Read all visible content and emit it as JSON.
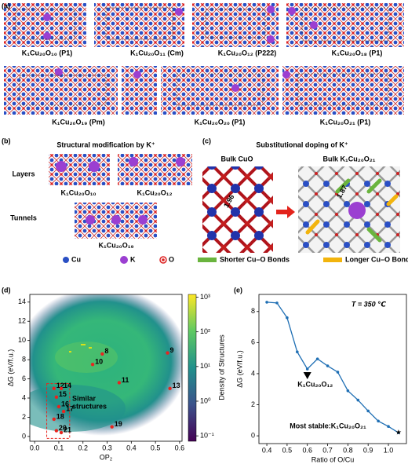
{
  "figure": {
    "panel_labels": [
      "(a)",
      "(b)",
      "(c)",
      "(d)",
      "(e)"
    ],
    "a_labels": [
      "K₁Cu₂₀O₁₀ (P1)",
      "K₁Cu₂₀O₁₁ (Cm)",
      "K₁Cu₂₀O₁₂ (P222)",
      "K₁Cu₂₀O₁₈ (P1)",
      "K₁Cu₂₀O₁₉ (Pm)",
      "K₁Cu₂₀O₂₀ (P1)",
      "K₁Cu₂₀O₂₁ (P1)"
    ],
    "b": {
      "title": "Structural modification by K⁺",
      "layers": "Layers",
      "tunnels": "Tunnels",
      "labels": [
        "K₁Cu₂₀O₁₀",
        "K₁Cu₂₀O₁₂",
        "K₁Cu₂₀O₁₉"
      ]
    },
    "c": {
      "title": "Substitutional doping of K⁺",
      "left": "Bulk CuO",
      "right": "Bulk K₁Cu₂₀O₂₁",
      "bond_left": "1.96",
      "bond_right": "1.87"
    },
    "legend": {
      "atoms": [
        "Cu",
        "K",
        "O"
      ],
      "bonds": [
        "Shorter Cu–O Bonds",
        "Longer Cu–O Bonds"
      ]
    }
  },
  "chart_data": [
    {
      "type": "scatter",
      "xlabel": "OP₂",
      "ylabel": "ΔG (eV/f.u.)",
      "xlim": [
        -0.02,
        0.61
      ],
      "ylim": [
        -0.5,
        14.8
      ],
      "xticks": [
        {
          "value": 0,
          "label": "0.0"
        },
        0.1,
        0.2,
        0.3,
        0.4,
        0.5,
        0.6
      ],
      "yticks": [
        0,
        2,
        4,
        6,
        8,
        10,
        12,
        14
      ],
      "x": [
        0.28,
        0.55,
        0.24,
        0.35,
        0.56,
        0.08,
        0.11,
        0.09,
        0.1,
        0.12,
        0.08,
        0.32,
        0.09,
        0.11
      ],
      "values": [
        8.6,
        8.7,
        7.5,
        5.6,
        5.0,
        5.0,
        5.0,
        4.1,
        3.1,
        2.6,
        1.8,
        1.0,
        0.6,
        0.4
      ],
      "point_labels": [
        "8",
        "9",
        "10",
        "11",
        "13",
        "12",
        "14",
        "15",
        "16",
        "17",
        "18",
        "19",
        "20",
        "21"
      ],
      "color": "#e8251f",
      "annotation": [
        "Similar",
        "structures"
      ],
      "colorbar": {
        "label": "Density of Structures",
        "scale": "log",
        "lim": [
          0.07,
          1200
        ],
        "ticks": [
          {
            "value": 0.1,
            "label": "10⁻¹"
          },
          {
            "value": 1,
            "label": "10⁰"
          },
          {
            "value": 10,
            "label": "10¹"
          },
          {
            "value": 100,
            "label": "10²"
          },
          {
            "value": 1000,
            "label": "10³"
          }
        ]
      }
    },
    {
      "type": "line",
      "title": "T = 350 ℃",
      "xlabel": "Ratio of O/Cu",
      "ylabel": "ΔG (eV/f.u.)",
      "xlim": [
        0.361,
        1.089
      ],
      "ylim": [
        -0.5,
        9.1
      ],
      "xticks": [
        0.4,
        0.5,
        0.6,
        0.7,
        0.8,
        0.9,
        {
          "value": 1,
          "label": "1.0"
        }
      ],
      "yticks": [
        0,
        2,
        4,
        6,
        8
      ],
      "x": [
        0.4,
        0.45,
        0.5,
        0.55,
        0.6,
        0.65,
        0.7,
        0.75,
        0.8,
        0.85,
        0.9,
        0.95,
        1.0,
        1.05
      ],
      "values": [
        8.6,
        8.55,
        7.6,
        5.4,
        4.3,
        4.95,
        4.5,
        4.1,
        2.9,
        2.3,
        1.6,
        0.95,
        0.6,
        0.2
      ],
      "color": "#1f6fb4",
      "annotations": [
        "K₁Cu₂₀O₁₂",
        "Most stable:K₁Cu₂₀O₂₁"
      ]
    }
  ]
}
